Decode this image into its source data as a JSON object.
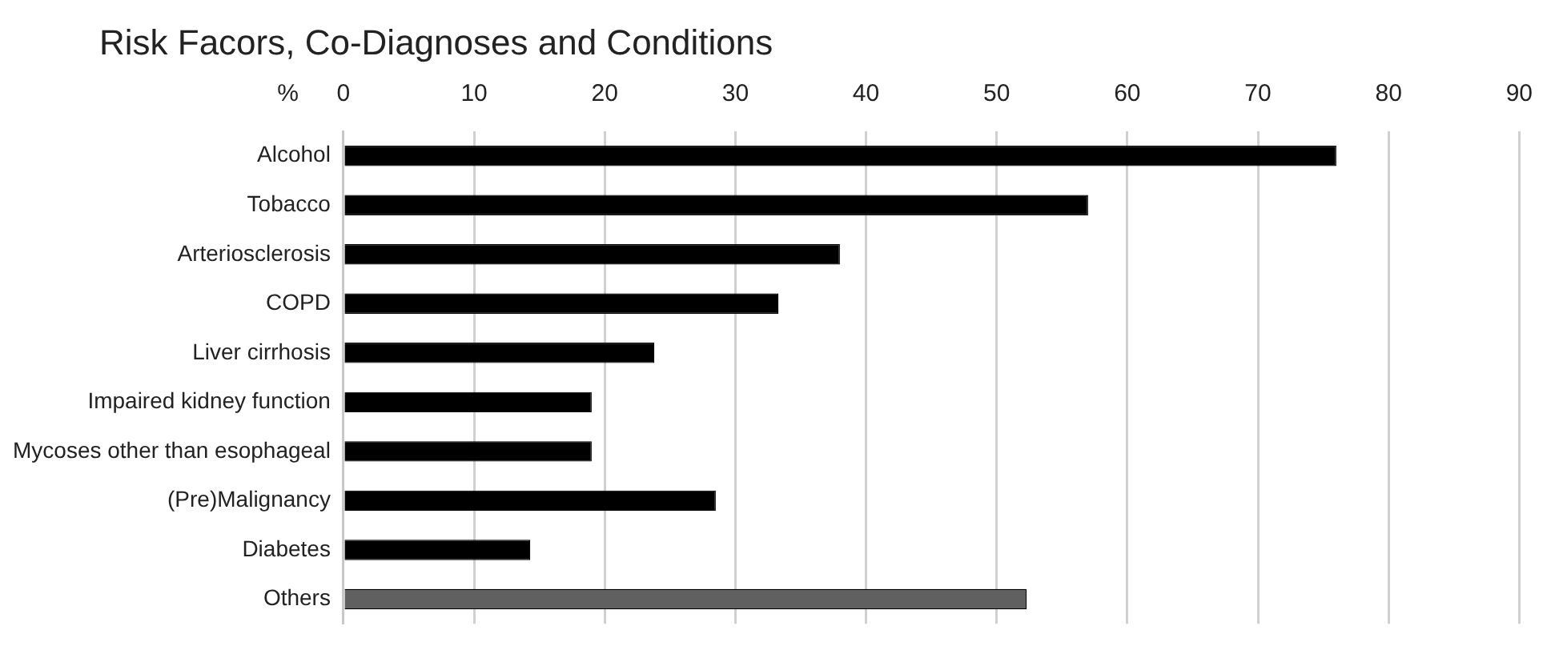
{
  "chart_data": {
    "type": "bar",
    "orientation": "horizontal",
    "title": "Risk Facors, Co-Diagnoses and Conditions",
    "xlabel": "%",
    "categories": [
      "Alcohol",
      "Tobacco",
      "Arteriosclerosis",
      "COPD",
      "Liver cirrhosis",
      "Impaired kidney function",
      "Mycoses other than esophageal",
      "(Pre)Malignancy",
      "Diabetes",
      "Others"
    ],
    "values": [
      76,
      57,
      38,
      33.3,
      23.8,
      19,
      19,
      28.5,
      14.3,
      52.3
    ],
    "colors": [
      "#000000",
      "#000000",
      "#000000",
      "#000000",
      "#000000",
      "#000000",
      "#000000",
      "#000000",
      "#000000",
      "#606060"
    ],
    "xlim": [
      0,
      90
    ],
    "xticks": [
      0,
      10,
      20,
      30,
      40,
      50,
      60,
      70,
      80,
      90
    ],
    "grid": "x",
    "legend": false
  }
}
